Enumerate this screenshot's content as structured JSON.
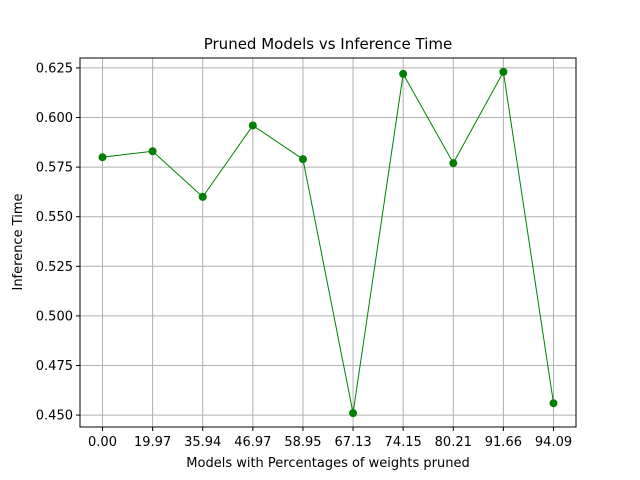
{
  "chart_data": {
    "type": "line",
    "title": "Pruned Models vs Inference Time",
    "xlabel": "Models with Percentages of weights pruned",
    "ylabel": "Inference Time",
    "categories": [
      "0.00",
      "19.97",
      "35.94",
      "46.97",
      "58.95",
      "67.13",
      "74.15",
      "80.21",
      "91.66",
      "94.09"
    ],
    "series": [
      {
        "values": [
          0.58,
          0.583,
          0.56,
          0.596,
          0.579,
          0.451,
          0.622,
          0.577,
          0.623,
          0.456
        ]
      }
    ],
    "ylim": [
      0.444,
      0.63
    ],
    "yticks": [
      "0.450",
      "0.475",
      "0.500",
      "0.525",
      "0.550",
      "0.575",
      "0.600",
      "0.625"
    ],
    "grid": true,
    "line_color": "#008000",
    "marker_color": "#008000",
    "grid_color": "#b0b0b0"
  }
}
